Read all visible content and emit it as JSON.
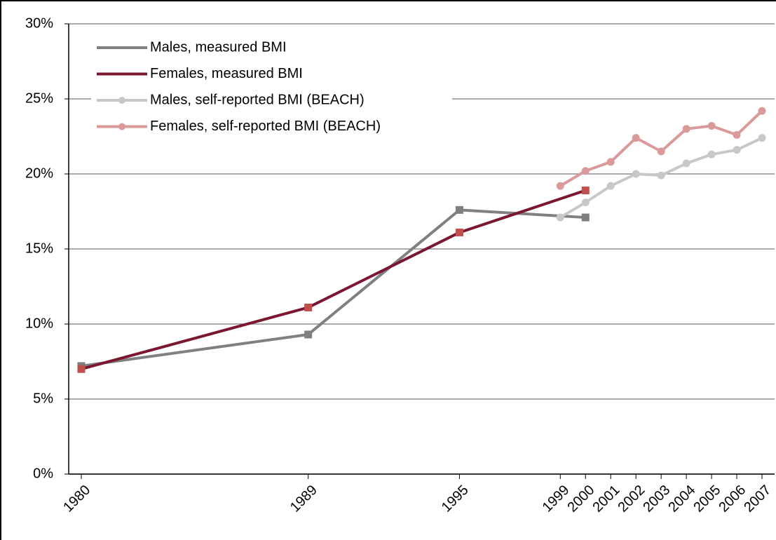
{
  "chart_data": {
    "type": "line",
    "xlim": [
      1979.5,
      2007.5
    ],
    "xticks": [
      1980,
      1989,
      1995,
      1999,
      2000,
      2001,
      2002,
      2003,
      2004,
      2005,
      2006,
      2007
    ],
    "ylim": [
      0,
      30
    ],
    "yticks": [
      {
        "value": 0,
        "label": "0%"
      },
      {
        "value": 5,
        "label": "5%"
      },
      {
        "value": 10,
        "label": "10%"
      },
      {
        "value": 15,
        "label": "15%"
      },
      {
        "value": 20,
        "label": "20%"
      },
      {
        "value": 25,
        "label": "25%"
      },
      {
        "value": 30,
        "label": "30%"
      }
    ],
    "grid": true,
    "legend": "top-left",
    "series": [
      {
        "name": "Males, measured BMI",
        "color": "#808080",
        "marker": "square",
        "marker_color": "#7f7f7f",
        "x": [
          1980,
          1989,
          1995,
          2000
        ],
        "values": [
          7.2,
          9.3,
          17.6,
          17.1
        ]
      },
      {
        "name": "Females, measured BMI",
        "color": "#7b1830",
        "marker": "square",
        "marker_color": "#c0504d",
        "x": [
          1980,
          1989,
          1995,
          2000
        ],
        "values": [
          7.0,
          11.1,
          16.1,
          18.9
        ]
      },
      {
        "name": "Males, self-reported BMI (BEACH)",
        "color": "#c8c8c8",
        "marker": "circle",
        "marker_color": "#c8c8c8",
        "x": [
          1999,
          2000,
          2001,
          2002,
          2003,
          2004,
          2005,
          2006,
          2007
        ],
        "values": [
          17.1,
          18.1,
          19.2,
          20.0,
          19.9,
          20.7,
          21.3,
          21.6,
          22.4
        ]
      },
      {
        "name": "Females, self-reported BMI (BEACH)",
        "color": "#db9a9a",
        "marker": "circle",
        "marker_color": "#db9a9a",
        "x": [
          1999,
          2000,
          2001,
          2002,
          2003,
          2004,
          2005,
          2006,
          2007
        ],
        "values": [
          19.2,
          20.2,
          20.8,
          22.4,
          21.5,
          23.0,
          23.2,
          22.6,
          24.2
        ]
      }
    ]
  }
}
